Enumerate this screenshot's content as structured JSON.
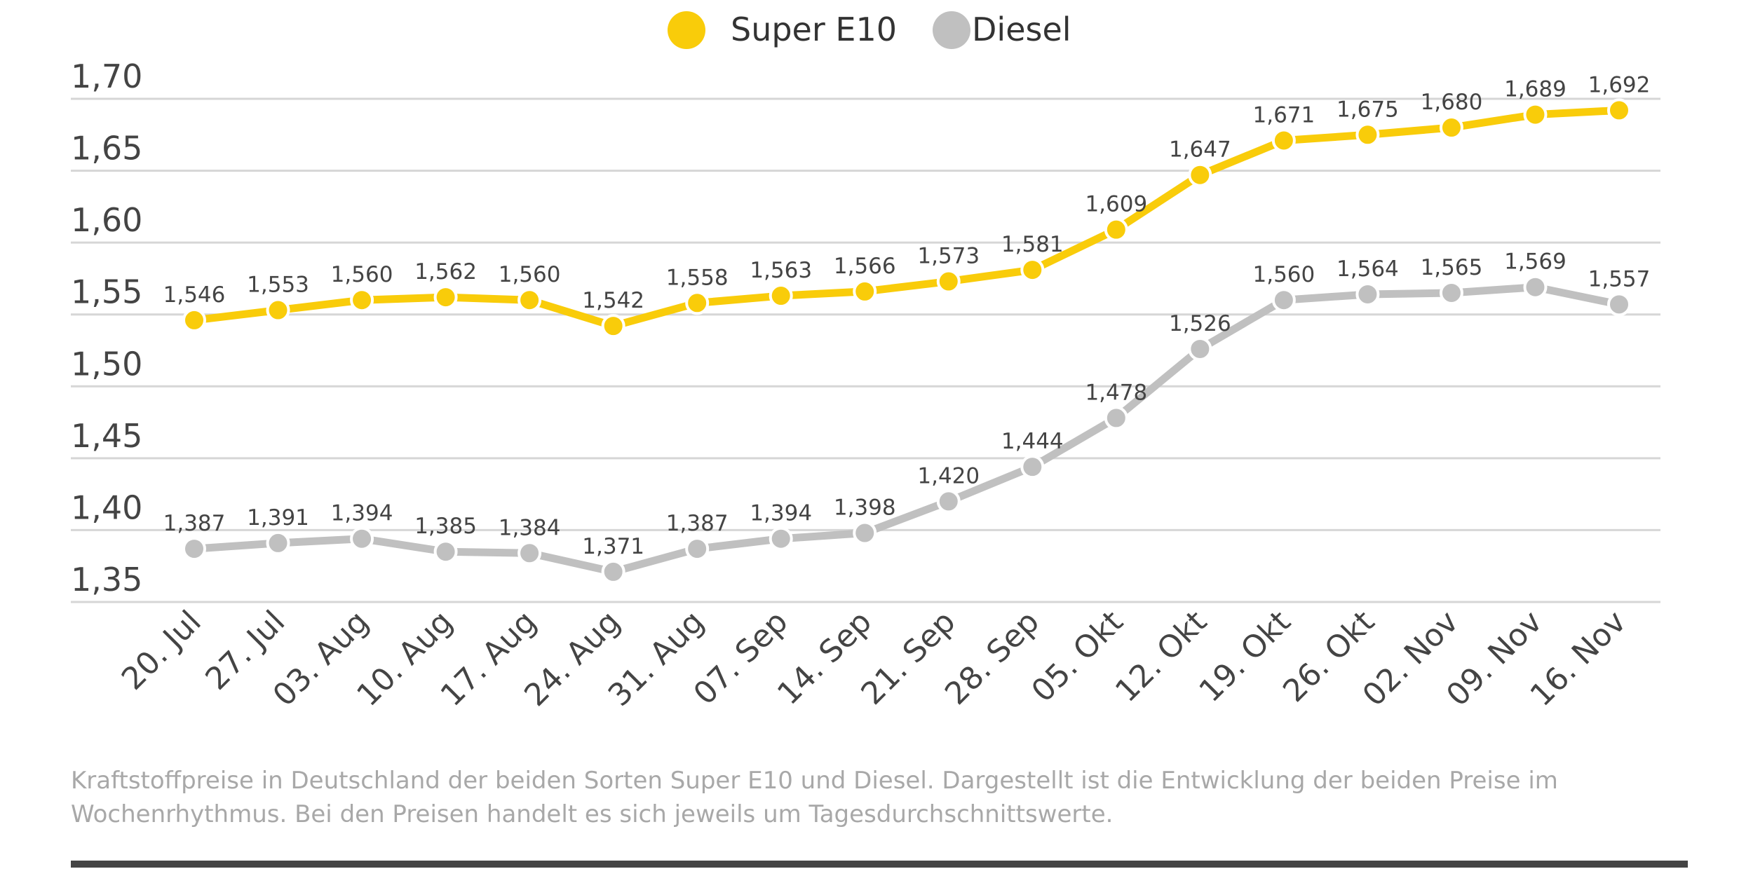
{
  "chart_data": {
    "type": "line",
    "categories": [
      "20. Jul",
      "27. Jul",
      "03. Aug",
      "10. Aug",
      "17. Aug",
      "24. Aug",
      "31. Aug",
      "07. Sep",
      "14. Sep",
      "21. Sep",
      "28. Sep",
      "05. Okt",
      "12. Okt",
      "19. Okt",
      "26. Okt",
      "02. Nov",
      "09. Nov",
      "16. Nov"
    ],
    "series": [
      {
        "name": "Super E10",
        "color": "#f9cc0a",
        "values": [
          1.546,
          1.553,
          1.56,
          1.562,
          1.56,
          1.542,
          1.558,
          1.563,
          1.566,
          1.573,
          1.581,
          1.609,
          1.647,
          1.671,
          1.675,
          1.68,
          1.689,
          1.692
        ],
        "labels": [
          "1,546",
          "1,553",
          "1,560",
          "1,562",
          "1,560",
          "1,542",
          "1,558",
          "1,563",
          "1,566",
          "1,573",
          "1,581",
          "1,609",
          "1,647",
          "1,671",
          "1,675",
          "1,680",
          "1,689",
          "1,692"
        ]
      },
      {
        "name": "Diesel",
        "color": "#c0c0c0",
        "values": [
          1.387,
          1.391,
          1.394,
          1.385,
          1.384,
          1.371,
          1.387,
          1.394,
          1.398,
          1.42,
          1.444,
          1.478,
          1.526,
          1.56,
          1.564,
          1.565,
          1.569,
          1.557
        ],
        "labels": [
          "1,387",
          "1,391",
          "1,394",
          "1,385",
          "1,384",
          "1,371",
          "1,387",
          "1,394",
          "1,398",
          "1,420",
          "1,444",
          "1,478",
          "1,526",
          "1,560",
          "1,564",
          "1,565",
          "1,569",
          "1,557"
        ]
      }
    ],
    "yticks": [
      1.35,
      1.4,
      1.45,
      1.5,
      1.55,
      1.6,
      1.65,
      1.7
    ],
    "ytick_labels": [
      "1,35",
      "1,40",
      "1,45",
      "1,50",
      "1,55",
      "1,60",
      "1,65",
      "1,70"
    ],
    "ylim": [
      1.35,
      1.7
    ],
    "grid": true,
    "legend": "top-center"
  },
  "caption": "Kraftstoffpreise in Deutschland der beiden Sorten Super E10 und Diesel. Dargestellt ist die Entwicklung der beiden Preise im Wochenrhythmus. Bei den Preisen handelt es sich jeweils um Tagesdurchschnittswerte."
}
